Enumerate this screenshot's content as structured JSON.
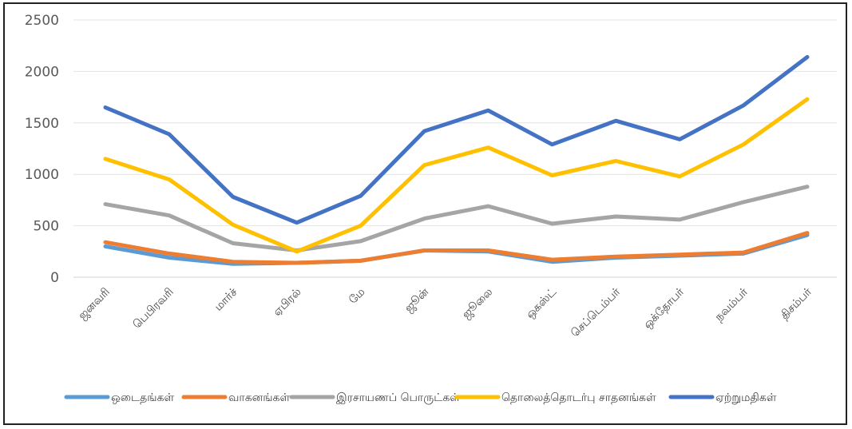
{
  "chart_data": {
    "type": "line",
    "title": "",
    "xlabel": "",
    "ylabel": "",
    "ylim": [
      0,
      2500
    ],
    "yticks": [
      0,
      500,
      1000,
      1500,
      2000,
      2500
    ],
    "grid": "horizontal",
    "legend_position": "bottom",
    "categories": [
      "ஜனவரி",
      "பெபிரவரி",
      "மார்ச்",
      "ஏபிரல்",
      "மே",
      "ஜூன்",
      "ஜூலை",
      "ஒகஸ்ட்",
      "செப்டெம்பர்",
      "ஒக்தோபர்",
      "நவம்பர்",
      "திசம்பர்"
    ],
    "series": [
      {
        "name": "ஏற்றுமதிகள்",
        "color": "#4472C4",
        "values": [
          1650,
          1390,
          780,
          530,
          790,
          1420,
          1620,
          1290,
          1520,
          1340,
          1670,
          2140
        ]
      },
      {
        "name": "தொலைத்தொடர்பு சாதனங்கள்",
        "color": "#FFC000",
        "values": [
          1150,
          950,
          510,
          250,
          500,
          1090,
          1260,
          990,
          1130,
          980,
          1290,
          1730
        ]
      },
      {
        "name": "இரசாயணப் பொருட்கள்",
        "color": "#A5A5A5",
        "values": [
          710,
          600,
          330,
          260,
          350,
          570,
          690,
          520,
          590,
          560,
          730,
          880
        ]
      },
      {
        "name": "வாகனங்கள்",
        "color": "#ED7D31",
        "values": [
          340,
          230,
          150,
          140,
          160,
          260,
          260,
          170,
          200,
          220,
          240,
          430
        ]
      },
      {
        "name": "ஒடைதங்கள்",
        "color": "#5B9BD5",
        "values": [
          300,
          190,
          130,
          140,
          160,
          260,
          250,
          150,
          190,
          210,
          230,
          410
        ]
      }
    ],
    "legend": [
      {
        "name": "ஒடைதங்கள்",
        "color": "#5B9BD5"
      },
      {
        "name": "வாகனங்கள்",
        "color": "#ED7D31"
      },
      {
        "name": "இரசாயணப் பொருட்கள்",
        "color": "#A5A5A5"
      },
      {
        "name": "தொலைத்தொடர்பு சாதனங்கள்",
        "color": "#FFC000"
      },
      {
        "name": "ஏற்றுமதிகள்",
        "color": "#4472C4"
      }
    ]
  }
}
